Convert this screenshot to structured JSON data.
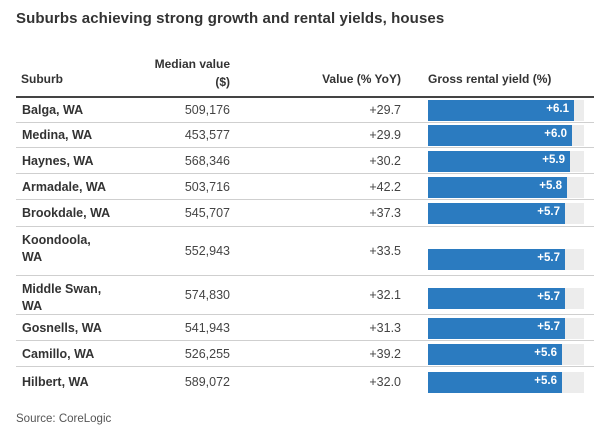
{
  "title": "Suburbs achieving strong growth and rental yields, houses",
  "headers": {
    "suburb": "Suburb",
    "median_line1": "Median value",
    "median_line2": "($)",
    "value": "Value (% YoY)",
    "yield": "Gross rental yield (%)"
  },
  "source": "Source: CoreLogic",
  "chart_data": {
    "type": "table",
    "title": "Suburbs achieving strong growth and rental yields, houses",
    "columns": [
      "Suburb",
      "Median value ($)",
      "Value (% YoY)",
      "Gross rental yield (%)"
    ],
    "yield_axis_max": 6.5,
    "rows": [
      {
        "suburb": "Balga, WA",
        "median": "509,176",
        "value": "+29.7",
        "yield": 6.1,
        "yield_label": "+6.1"
      },
      {
        "suburb": "Medina, WA",
        "median": "453,577",
        "value": "+29.9",
        "yield": 6.0,
        "yield_label": "+6.0"
      },
      {
        "suburb": "Haynes, WA",
        "median": "568,346",
        "value": "+30.2",
        "yield": 5.9,
        "yield_label": "+5.9"
      },
      {
        "suburb": "Armadale, WA",
        "median": "503,716",
        "value": "+42.2",
        "yield": 5.8,
        "yield_label": "+5.8"
      },
      {
        "suburb": "Brookdale, WA",
        "median": "545,707",
        "value": "+37.3",
        "yield": 5.7,
        "yield_label": "+5.7"
      },
      {
        "suburb": "Koondoola, WA",
        "median": "552,943",
        "value": "+33.5",
        "yield": 5.7,
        "yield_label": "+5.7"
      },
      {
        "suburb": "Middle Swan, WA",
        "median": "574,830",
        "value": "+32.1",
        "yield": 5.7,
        "yield_label": "+5.7"
      },
      {
        "suburb": "Gosnells, WA",
        "median": "541,943",
        "value": "+31.3",
        "yield": 5.7,
        "yield_label": "+5.7"
      },
      {
        "suburb": "Camillo, WA",
        "median": "526,255",
        "value": "+39.2",
        "yield": 5.6,
        "yield_label": "+5.6"
      },
      {
        "suburb": "Hilbert, WA",
        "median": "589,072",
        "value": "+32.0",
        "yield": 5.6,
        "yield_label": "+5.6"
      }
    ]
  }
}
